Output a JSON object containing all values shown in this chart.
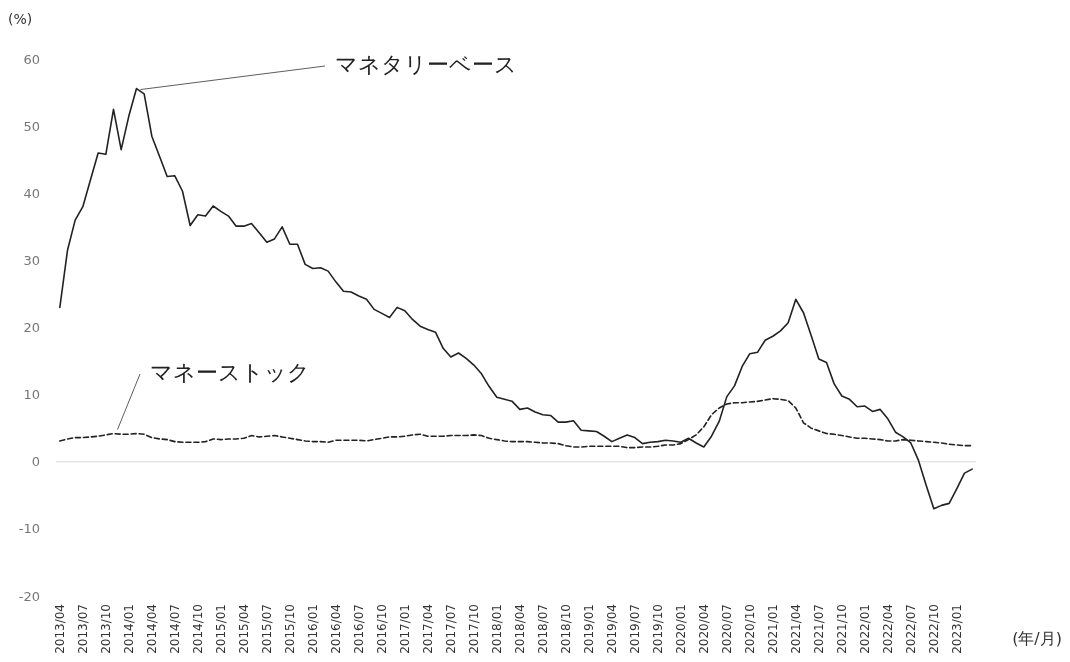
{
  "chart_data": {
    "type": "line",
    "ylabel": "(%)",
    "xlabel": "(年/月)",
    "categories": [
      "2013/04",
      null,
      null,
      "2013/07",
      null,
      null,
      "2013/10",
      null,
      null,
      "2014/01",
      null,
      null,
      "2014/04",
      null,
      null,
      "2014/07",
      null,
      null,
      "2014/10",
      null,
      null,
      "2015/01",
      null,
      null,
      "2015/04",
      null,
      null,
      "2015/07",
      null,
      null,
      "2015/10",
      null,
      null,
      "2016/01",
      null,
      null,
      "2016/04",
      null,
      null,
      "2016/07",
      null,
      null,
      "2016/10",
      null,
      null,
      "2017/01",
      null,
      null,
      "2017/04",
      null,
      null,
      "2017/07",
      null,
      null,
      "2017/10",
      null,
      null,
      "2018/01",
      null,
      null,
      "2018/04",
      null,
      null,
      "2018/07",
      null,
      null,
      "2018/10",
      null,
      null,
      "2019/01",
      null,
      null,
      "2019/04",
      null,
      null,
      "2019/07",
      null,
      null,
      "2019/10",
      null,
      null,
      "2020/01",
      null,
      null,
      "2020/04",
      null,
      null,
      "2020/07",
      null,
      null,
      "2020/10",
      null,
      null,
      "2021/01",
      null,
      null,
      "2021/04",
      null,
      null,
      "2021/07",
      null,
      null,
      "2021/10",
      null,
      null,
      "2022/01",
      null,
      null,
      "2022/04",
      null,
      null,
      "2022/07",
      null,
      null,
      "2022/10",
      null,
      null,
      "2023/01",
      null,
      null
    ],
    "ylim": [
      -20,
      60
    ],
    "yticks": [
      -20,
      -10,
      0,
      10,
      20,
      30,
      40,
      50,
      60
    ],
    "series": [
      {
        "name": "マネタリーベース",
        "color": "#222222",
        "line_style": "solid",
        "values": [
          23,
          31.5,
          36,
          38,
          42,
          46,
          45.8,
          52.5,
          46.5,
          51.5,
          55.6,
          54.8,
          48.5,
          45.5,
          42.5,
          42.6,
          40.3,
          35.2,
          36.8,
          36.6,
          38.1,
          37.3,
          36.6,
          35.1,
          35.1,
          35.5,
          34.1,
          32.7,
          33.2,
          35,
          32.4,
          32.4,
          29.4,
          28.8,
          28.9,
          28.4,
          26.8,
          25.4,
          25.3,
          24.7,
          24.2,
          22.7,
          22.1,
          21.5,
          23,
          22.5,
          21.2,
          20.2,
          19.7,
          19.3,
          16.9,
          15.6,
          16.2,
          15.4,
          14.4,
          13.1,
          11.2,
          9.6,
          9.3,
          9,
          7.8,
          8,
          7.4,
          7,
          6.9,
          5.9,
          5.9,
          6.1,
          4.7,
          4.6,
          4.5,
          3.8,
          3,
          3.5,
          4,
          3.6,
          2.7,
          2.9,
          3,
          3.2,
          3.1,
          2.9,
          3.5,
          2.8,
          2.2,
          3.8,
          6,
          9.7,
          11.3,
          14.2,
          16.1,
          16.3,
          18.1,
          18.7,
          19.5,
          20.7,
          24.2,
          22.2,
          18.8,
          15.3,
          14.8,
          11.6,
          9.8,
          9.3,
          8.2,
          8.3,
          7.5,
          7.8,
          6.4,
          4.4,
          3.7,
          2.8,
          0.2,
          -3.5,
          -7,
          -6.5,
          -6.2,
          -4,
          -1.7,
          -1.1
        ]
      },
      {
        "name": "マネーストック",
        "color": "#222222",
        "line_style": "dashed",
        "values": [
          3.1,
          3.4,
          3.6,
          3.6,
          3.7,
          3.8,
          4,
          4.2,
          4.1,
          4.1,
          4.2,
          4.1,
          3.6,
          3.4,
          3.3,
          3,
          2.9,
          2.9,
          2.9,
          3,
          3.4,
          3.3,
          3.4,
          3.4,
          3.5,
          3.9,
          3.7,
          3.8,
          3.9,
          3.7,
          3.5,
          3.3,
          3.1,
          3,
          3,
          2.9,
          3.2,
          3.2,
          3.2,
          3.2,
          3.1,
          3.3,
          3.5,
          3.7,
          3.7,
          3.8,
          4,
          4.1,
          3.8,
          3.8,
          3.8,
          3.9,
          3.9,
          3.9,
          4,
          3.9,
          3.5,
          3.3,
          3.1,
          3,
          3,
          3,
          2.9,
          2.8,
          2.8,
          2.7,
          2.4,
          2.2,
          2.2,
          2.3,
          2.3,
          2.3,
          2.3,
          2.3,
          2.1,
          2.1,
          2.2,
          2.2,
          2.3,
          2.5,
          2.5,
          2.7,
          3.3,
          4,
          5.2,
          7,
          8,
          8.6,
          8.8,
          8.8,
          8.9,
          9,
          9.2,
          9.4,
          9.3,
          9.1,
          8,
          5.8,
          5,
          4.6,
          4.2,
          4.1,
          3.9,
          3.7,
          3.5,
          3.5,
          3.4,
          3.3,
          3.1,
          3.1,
          3.3,
          3.2,
          3.1,
          3,
          2.9,
          2.8,
          2.6,
          2.5,
          2.4,
          2.4
        ]
      }
    ]
  }
}
